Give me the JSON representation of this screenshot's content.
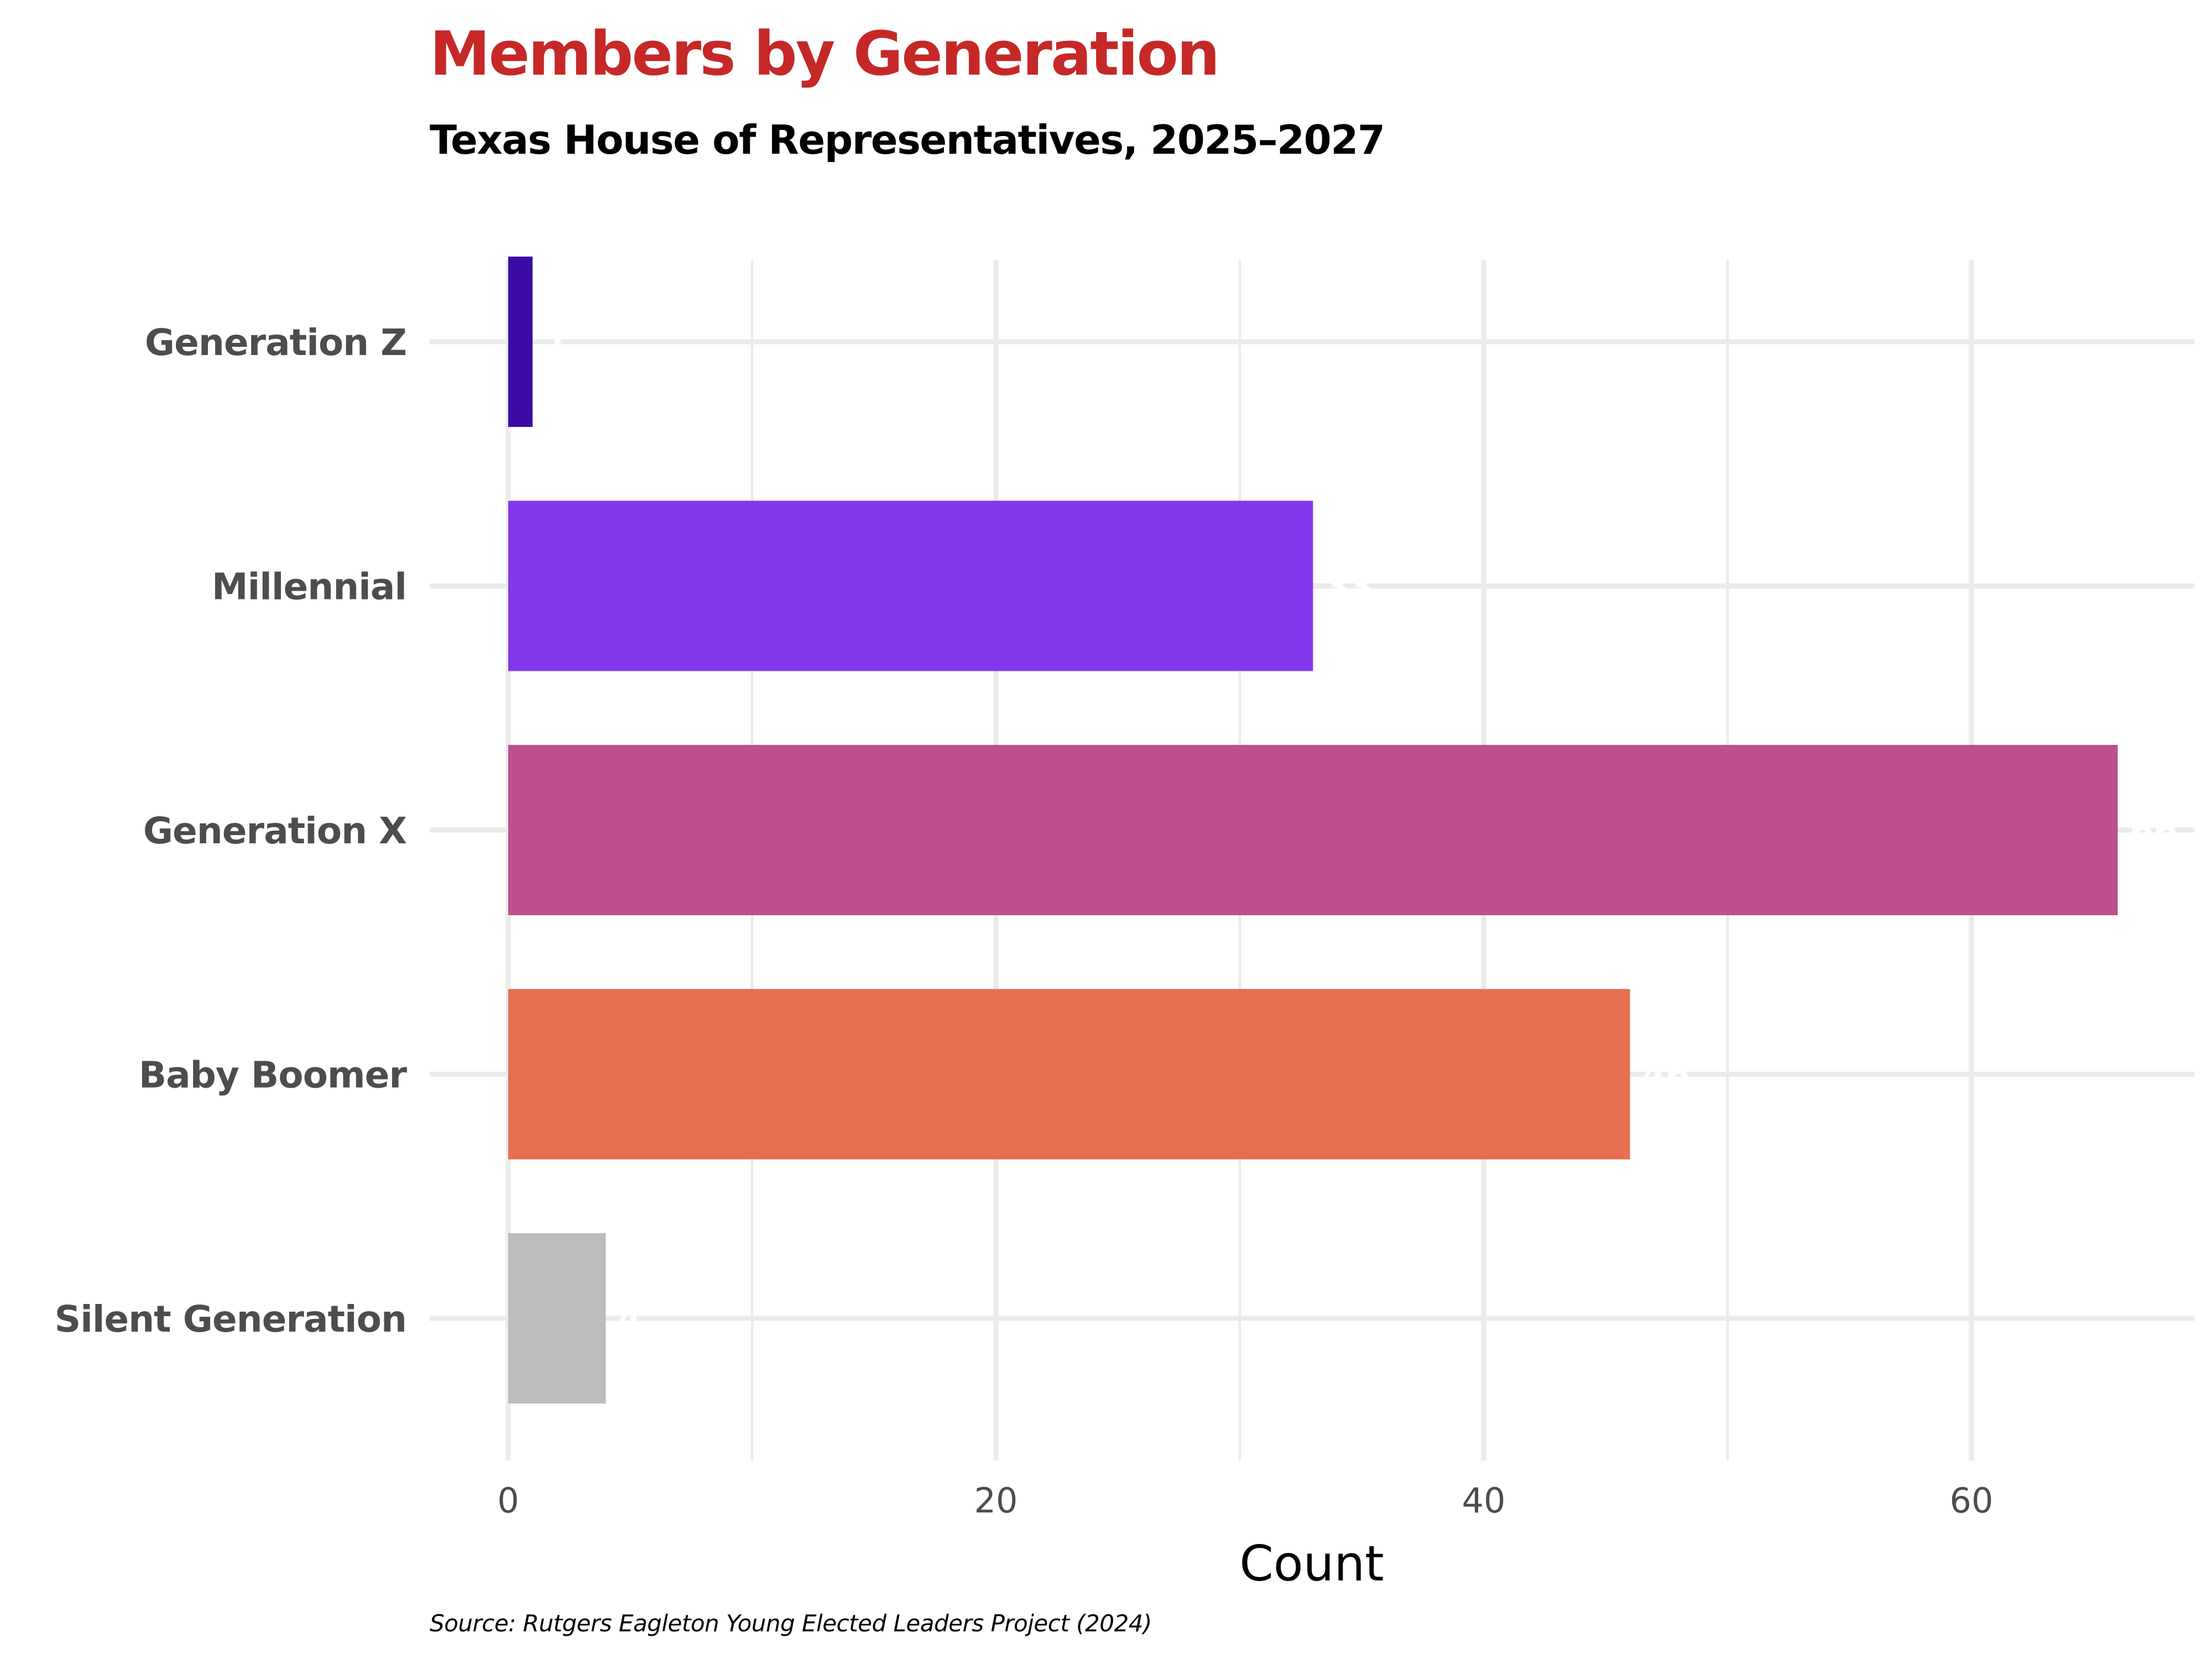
{
  "chart_data": {
    "type": "bar",
    "orientation": "horizontal",
    "title": "Members by Generation",
    "subtitle": "Texas House of Representatives, 2025–2027",
    "xlabel": "Count",
    "ylabel": "",
    "caption": "Source: Rutgers Eagleton Young Elected Leaders Project (2024)",
    "categories": [
      "Generation Z",
      "Millennial",
      "Generation X",
      "Baby Boomer",
      "Silent Generation"
    ],
    "values": [
      1,
      33,
      66,
      46,
      4
    ],
    "bar_colors": [
      "#3b0ca3",
      "#8338ec",
      "#bd508e",
      "#e56f51",
      "#bcbcbc"
    ],
    "xlim": [
      0,
      69
    ],
    "x_ticks": [
      0,
      20,
      40,
      60
    ],
    "x_minor_ticks": [
      10,
      30,
      50
    ],
    "grid": true,
    "legend": "none",
    "title_color": "#c62828",
    "subtitle_color": "#000000"
  }
}
